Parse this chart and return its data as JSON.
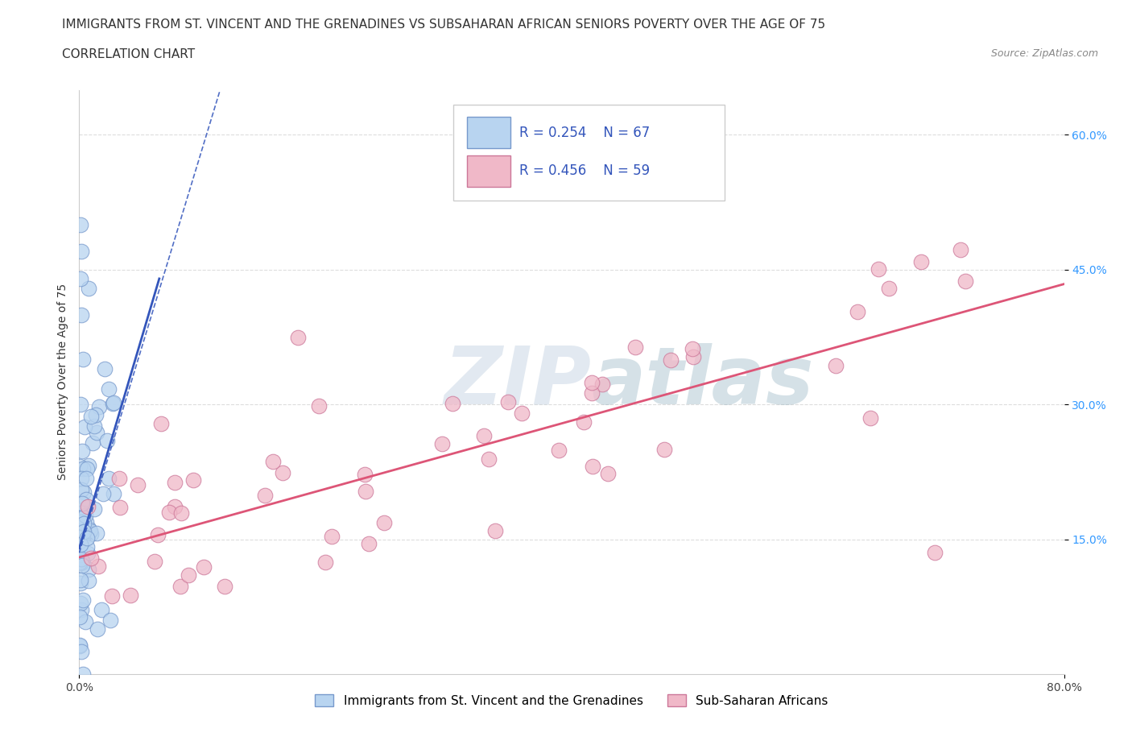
{
  "title": "IMMIGRANTS FROM ST. VINCENT AND THE GRENADINES VS SUBSAHARAN AFRICAN SENIORS POVERTY OVER THE AGE OF 75",
  "subtitle": "CORRELATION CHART",
  "source": "Source: ZipAtlas.com",
  "ylabel": "Seniors Poverty Over the Age of 75",
  "xlim": [
    0.0,
    0.8
  ],
  "ylim": [
    0.0,
    0.65
  ],
  "ytick_positions": [
    0.15,
    0.3,
    0.45,
    0.6
  ],
  "ytick_labels": [
    "15.0%",
    "30.0%",
    "45.0%",
    "60.0%"
  ],
  "series1_label": "Immigrants from St. Vincent and the Grenadines",
  "series1_color": "#b8d4f0",
  "series1_edge_color": "#7799cc",
  "series1_line_color": "#3355bb",
  "series2_label": "Sub-Saharan Africans",
  "series2_color": "#f0b8c8",
  "series2_edge_color": "#cc7799",
  "series2_line_color": "#dd5577",
  "grid_color": "#dddddd",
  "grid_style": "--",
  "background_color": "#ffffff",
  "watermark": "ZIPatlas",
  "watermark_color": "#c8d8e8",
  "R_color": "#3355bb",
  "title_fontsize": 11,
  "subtitle_fontsize": 11,
  "source_fontsize": 9,
  "axis_fontsize": 10,
  "tick_fontsize": 10,
  "ytick_color": "#3399ff",
  "seed": 42,
  "blue_trend_intercept": 0.135,
  "blue_trend_slope": 4.5,
  "pink_trend_intercept": 0.13,
  "pink_trend_slope": 0.38
}
